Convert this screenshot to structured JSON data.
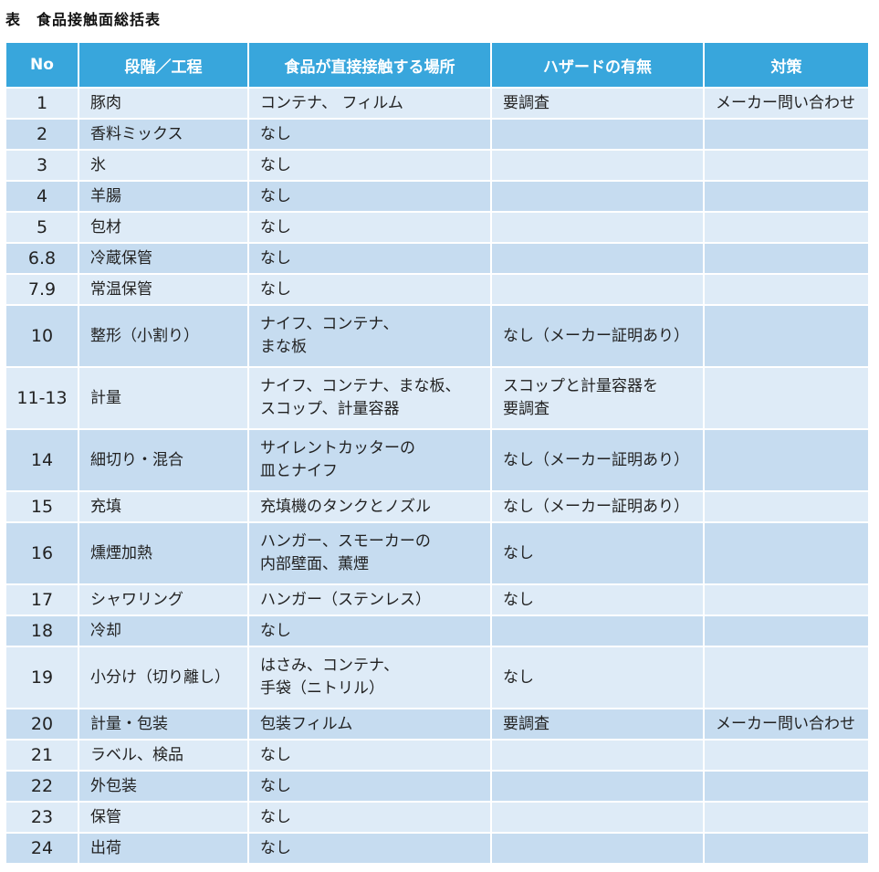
{
  "title": "表　食品接触面総括表",
  "colors": {
    "header": "#38a6dc",
    "row_light": "#deebf7",
    "row_dark": "#c6dcf0"
  },
  "headers": [
    "No",
    "段階／工程",
    "食品が直接接触する場所",
    "ハザードの有無",
    "対策"
  ],
  "rows": [
    {
      "no": "1",
      "step": "豚肉",
      "contact": "コンテナ、 フィルム",
      "hazard": "要調査",
      "measure": "メーカー問い合わせ"
    },
    {
      "no": "2",
      "step": "香料ミックス",
      "contact": "なし",
      "hazard": "",
      "measure": ""
    },
    {
      "no": "3",
      "step": "氷",
      "contact": "なし",
      "hazard": "",
      "measure": ""
    },
    {
      "no": "4",
      "step": "羊腸",
      "contact": "なし",
      "hazard": "",
      "measure": ""
    },
    {
      "no": "5",
      "step": "包材",
      "contact": "なし",
      "hazard": "",
      "measure": ""
    },
    {
      "no": "6.8",
      "step": "冷蔵保管",
      "contact": "なし",
      "hazard": "",
      "measure": ""
    },
    {
      "no": "7.9",
      "step": "常温保管",
      "contact": "なし",
      "hazard": "",
      "measure": ""
    },
    {
      "no": "10",
      "step": "整形（小割り）",
      "contact": "ナイフ、コンテナ、\nまな板",
      "hazard": "なし（メーカー証明あり）",
      "measure": ""
    },
    {
      "no": "11-13",
      "step": "計量",
      "contact": "ナイフ、コンテナ、まな板、\nスコップ、計量容器",
      "hazard": "スコップと計量容器を\n要調査",
      "measure": ""
    },
    {
      "no": "14",
      "step": "細切り・混合",
      "contact": "サイレントカッターの\n皿とナイフ",
      "hazard": "なし（メーカー証明あり）",
      "measure": ""
    },
    {
      "no": "15",
      "step": "充填",
      "contact": "充填機のタンクとノズル",
      "hazard": "なし（メーカー証明あり）",
      "measure": ""
    },
    {
      "no": "16",
      "step": "燻煙加熱",
      "contact": "ハンガー、スモーカーの\n内部壁面、薫煙",
      "hazard": "なし",
      "measure": ""
    },
    {
      "no": "17",
      "step": "シャワリング",
      "contact": "ハンガー（ステンレス）",
      "hazard": "なし",
      "measure": ""
    },
    {
      "no": "18",
      "step": "冷却",
      "contact": "なし",
      "hazard": "",
      "measure": ""
    },
    {
      "no": "19",
      "step": "小分け（切り離し）",
      "contact": "はさみ、コンテナ、\n手袋（ニトリル）",
      "hazard": "なし",
      "measure": ""
    },
    {
      "no": "20",
      "step": "計量・包装",
      "contact": "包装フィルム",
      "hazard": "要調査",
      "measure": "メーカー問い合わせ"
    },
    {
      "no": "21",
      "step": "ラベル、検品",
      "contact": "なし",
      "hazard": "",
      "measure": ""
    },
    {
      "no": "22",
      "step": "外包装",
      "contact": "なし",
      "hazard": "",
      "measure": ""
    },
    {
      "no": "23",
      "step": "保管",
      "contact": "なし",
      "hazard": "",
      "measure": ""
    },
    {
      "no": "24",
      "step": "出荷",
      "contact": "なし",
      "hazard": "",
      "measure": ""
    }
  ]
}
